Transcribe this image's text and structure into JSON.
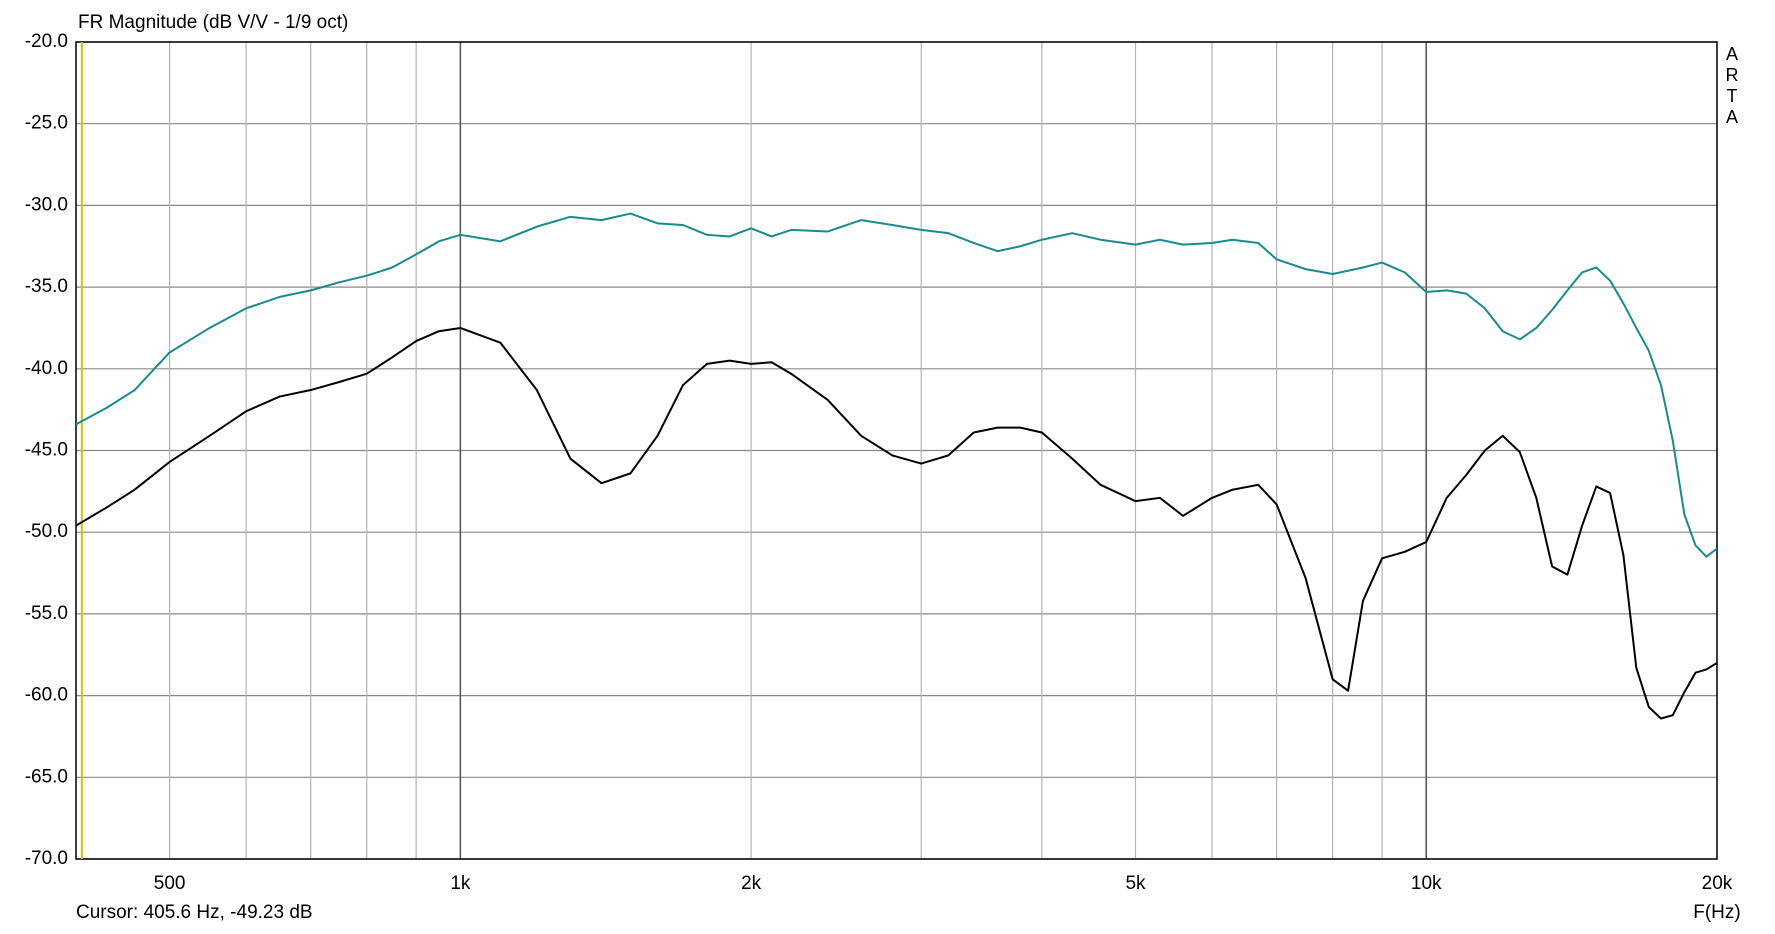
{
  "chart_data": {
    "type": "line",
    "title": "FR Magnitude (dB V/V - 1/9 oct)",
    "xlabel": "F(Hz)",
    "watermark": "ARTA",
    "cursor": {
      "label": "Cursor: 405.6 Hz, -49.23 dB",
      "x": 405.6,
      "color": "#c8c800"
    },
    "xscale": "log",
    "grid": true,
    "xlim": [
      400,
      20000
    ],
    "ylim": [
      -70,
      -20
    ],
    "xticks": [
      {
        "value": 500,
        "label": "500"
      },
      {
        "value": 1000,
        "label": "1k"
      },
      {
        "value": 2000,
        "label": "2k"
      },
      {
        "value": 5000,
        "label": "5k"
      },
      {
        "value": 10000,
        "label": "10k"
      },
      {
        "value": 20000,
        "label": "20k"
      }
    ],
    "xminor_ticks": [
      600,
      700,
      800,
      900,
      3000,
      4000,
      6000,
      7000,
      8000,
      9000
    ],
    "yticks": [
      {
        "value": -20,
        "label": "-20.0"
      },
      {
        "value": -25,
        "label": "-25.0"
      },
      {
        "value": -30,
        "label": "-30.0"
      },
      {
        "value": -35,
        "label": "-35.0"
      },
      {
        "value": -40,
        "label": "-40.0"
      },
      {
        "value": -45,
        "label": "-45.0"
      },
      {
        "value": -50,
        "label": "-50.0"
      },
      {
        "value": -55,
        "label": "-55.0"
      },
      {
        "value": -60,
        "label": "-60.0"
      },
      {
        "value": -65,
        "label": "-65.0"
      },
      {
        "value": -70,
        "label": "-70.0"
      }
    ],
    "x": [
      400,
      430,
      460,
      500,
      550,
      600,
      650,
      700,
      750,
      800,
      850,
      900,
      950,
      1000,
      1100,
      1200,
      1300,
      1400,
      1500,
      1600,
      1700,
      1800,
      1900,
      2000,
      2100,
      2200,
      2400,
      2600,
      2800,
      3000,
      3200,
      3400,
      3600,
      3800,
      4000,
      4300,
      4600,
      5000,
      5300,
      5600,
      6000,
      6300,
      6700,
      7000,
      7500,
      8000,
      8300,
      8600,
      9000,
      9500,
      10000,
      10500,
      11000,
      11500,
      12000,
      12500,
      13000,
      13500,
      14000,
      14500,
      15000,
      15500,
      16000,
      16500,
      17000,
      17500,
      18000,
      18500,
      19000,
      19500,
      20000
    ],
    "series": [
      {
        "color": "#1b8a8f",
        "values": [
          -43.4,
          -42.4,
          -41.3,
          -39.0,
          -37.5,
          -36.3,
          -35.6,
          -35.2,
          -34.7,
          -34.3,
          -33.8,
          -33.0,
          -32.2,
          -31.8,
          -32.2,
          -31.3,
          -30.7,
          -30.9,
          -30.5,
          -31.1,
          -31.2,
          -31.8,
          -31.9,
          -31.4,
          -31.9,
          -31.5,
          -31.6,
          -30.9,
          -31.2,
          -31.5,
          -31.7,
          -32.3,
          -32.8,
          -32.5,
          -32.1,
          -31.7,
          -32.1,
          -32.4,
          -32.1,
          -32.4,
          -32.3,
          -32.1,
          -32.3,
          -33.3,
          -33.9,
          -34.2,
          -34.0,
          -33.8,
          -33.5,
          -34.1,
          -35.3,
          -35.2,
          -35.4,
          -36.3,
          -37.7,
          -38.2,
          -37.5,
          -36.4,
          -35.2,
          -34.1,
          -33.8,
          -34.6,
          -36.0,
          -37.5,
          -38.9,
          -41.0,
          -44.4,
          -48.9,
          -50.8,
          -51.5,
          -51.0
        ]
      },
      {
        "color": "#000000",
        "values": [
          -49.6,
          -48.5,
          -47.4,
          -45.7,
          -44.1,
          -42.6,
          -41.7,
          -41.3,
          -40.8,
          -40.3,
          -39.3,
          -38.3,
          -37.7,
          -37.5,
          -38.4,
          -41.3,
          -45.5,
          -47.0,
          -46.4,
          -44.1,
          -41.0,
          -39.7,
          -39.5,
          -39.7,
          -39.6,
          -40.3,
          -41.9,
          -44.1,
          -45.3,
          -45.8,
          -45.3,
          -43.9,
          -43.6,
          -43.6,
          -43.9,
          -45.5,
          -47.1,
          -48.1,
          -47.9,
          -49.0,
          -47.9,
          -47.4,
          -47.1,
          -48.3,
          -52.8,
          -59.0,
          -59.7,
          -54.2,
          -51.6,
          -51.2,
          -50.6,
          -47.9,
          -46.5,
          -45.0,
          -44.1,
          -45.1,
          -47.9,
          -52.1,
          -52.6,
          -49.6,
          -47.2,
          -47.6,
          -51.4,
          -58.3,
          -60.7,
          -61.4,
          -61.2,
          -59.8,
          -58.6,
          -58.4,
          -58.0
        ]
      }
    ]
  }
}
